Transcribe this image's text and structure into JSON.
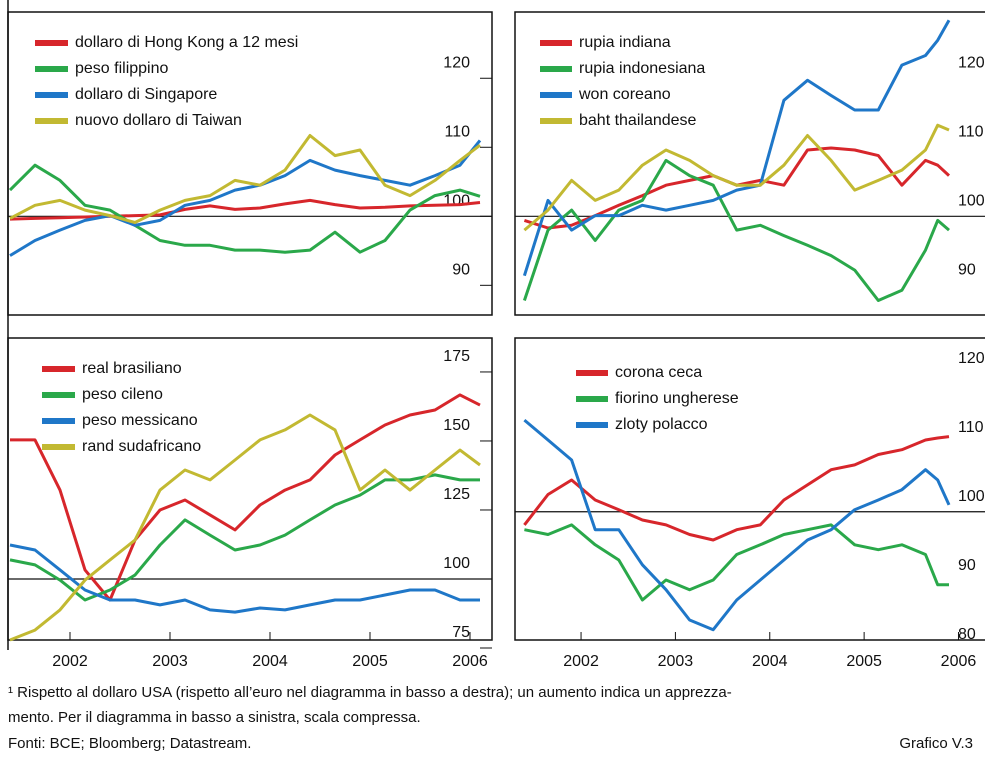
{
  "chart_data": [
    {
      "type": "line",
      "ylim": [
        85.7,
        129.6
      ],
      "yticks": [
        90,
        100,
        110,
        120
      ],
      "xlim": [
        2001.88,
        2006.72
      ],
      "reference_line": 100,
      "x": [
        2001.9,
        2002.15,
        2002.4,
        2002.65,
        2002.9,
        2003.15,
        2003.4,
        2003.65,
        2003.9,
        2004.15,
        2004.4,
        2004.65,
        2004.9,
        2005.15,
        2005.4,
        2005.65,
        2005.9,
        2006.15,
        2006.4,
        2006.6
      ],
      "series": [
        {
          "name": "dollaro di Hong Kong a 12 mesi",
          "color": "#d7262b",
          "values": [
            99.6,
            99.7,
            99.8,
            99.9,
            100,
            100.1,
            100.2,
            101,
            101.5,
            101,
            101.2,
            101.8,
            102.3,
            101.7,
            101.2,
            101.3,
            101.5,
            101.6,
            101.7,
            102
          ]
        },
        {
          "name": "peso filippino",
          "color": "#2aa84a",
          "values": [
            103.8,
            107.4,
            105.2,
            101.6,
            100.9,
            98.7,
            96.5,
            95.8,
            95.8,
            95.1,
            95.1,
            94.8,
            95.1,
            97.7,
            94.8,
            96.5,
            100.9,
            103,
            103.8,
            102.9
          ]
        },
        {
          "name": "dollaro di Singapore",
          "color": "#1f77c8",
          "values": [
            94.3,
            96.5,
            98,
            99.4,
            100.1,
            98.7,
            99.4,
            101.6,
            102.3,
            103.8,
            104.5,
            105.9,
            108.1,
            106.7,
            105.9,
            105.2,
            104.5,
            105.9,
            107.4,
            111
          ]
        },
        {
          "name": "nuovo dollaro di Taiwan",
          "color": "#c2b932",
          "values": [
            99.7,
            101.6,
            102.3,
            100.9,
            100.1,
            99.1,
            100.9,
            102.3,
            103,
            105.2,
            104.5,
            106.7,
            111.7,
            108.8,
            109.6,
            104.5,
            103,
            105.2,
            108.1,
            110.3
          ]
        }
      ]
    },
    {
      "type": "line",
      "ylim": [
        85.7,
        129.6
      ],
      "yticks": [
        90,
        100,
        110,
        120
      ],
      "xlim": [
        2001.8,
        2006.94
      ],
      "reference_line": 100,
      "x": [
        2001.9,
        2002.15,
        2002.4,
        2002.65,
        2002.9,
        2003.15,
        2003.4,
        2003.65,
        2003.9,
        2004.15,
        2004.4,
        2004.65,
        2004.9,
        2005.15,
        2005.4,
        2005.65,
        2005.9,
        2006.15,
        2006.28,
        2006.4
      ],
      "series": [
        {
          "name": "rupia indiana",
          "color": "#d7262b",
          "values": [
            99.4,
            98.3,
            98.7,
            100.1,
            101.6,
            103,
            104.5,
            105.2,
            105.9,
            104.5,
            105.2,
            104.5,
            109.6,
            109.9,
            109.6,
            108.8,
            104.5,
            108.1,
            107.4,
            105.9
          ]
        },
        {
          "name": "rupia indonesiana",
          "color": "#2aa84a",
          "values": [
            87.8,
            98,
            100.9,
            96.5,
            100.9,
            102.3,
            108.1,
            105.9,
            104.5,
            98,
            98.7,
            97.2,
            95.8,
            94.3,
            92.2,
            87.8,
            89.3,
            95.1,
            99.4,
            98
          ]
        },
        {
          "name": "won coreano",
          "color": "#1f77c8",
          "values": [
            91.4,
            102.3,
            98,
            100.1,
            100.1,
            101.6,
            100.9,
            101.6,
            102.3,
            103.8,
            104.5,
            116.8,
            119.7,
            117.5,
            115.4,
            115.4,
            121.9,
            123.3,
            125.5,
            128.4
          ]
        },
        {
          "name": "baht thailandese",
          "color": "#c2b932",
          "values": [
            98,
            100.9,
            105.2,
            102.3,
            103.8,
            107.4,
            109.6,
            108.1,
            105.9,
            104.5,
            104.5,
            107.4,
            111.7,
            108.1,
            103.8,
            105.2,
            106.7,
            109.6,
            113.2,
            112.5
          ]
        }
      ]
    },
    {
      "type": "line",
      "ylim": [
        77.9,
        187.3
      ],
      "yticks": [
        75,
        100,
        125,
        150,
        175
      ],
      "xlim": [
        2001.88,
        2006.72
      ],
      "reference_line": 100,
      "xticks": [
        {
          "value": 2002.5,
          "label": "2002"
        },
        {
          "value": 2003.5,
          "label": "2003"
        },
        {
          "value": 2004.5,
          "label": "2004"
        },
        {
          "value": 2005.5,
          "label": "2005"
        },
        {
          "value": 2006.5,
          "label": "2006"
        }
      ],
      "x": [
        2001.9,
        2002.15,
        2002.4,
        2002.65,
        2002.9,
        2003.15,
        2003.4,
        2003.65,
        2003.9,
        2004.15,
        2004.4,
        2004.65,
        2004.9,
        2005.15,
        2005.4,
        2005.65,
        2005.9,
        2006.15,
        2006.4,
        2006.6
      ],
      "series": [
        {
          "name": "real brasiliano",
          "color": "#d7262b",
          "values": [
            150.4,
            150.4,
            132.2,
            103.3,
            92.4,
            114.1,
            125,
            128.6,
            123.2,
            117.8,
            126.8,
            132.2,
            135.9,
            144.9,
            150.4,
            155.8,
            159.4,
            161.2,
            166.7,
            163
          ]
        },
        {
          "name": "peso cileno",
          "color": "#2aa84a",
          "values": [
            106.9,
            105.1,
            99.6,
            92.4,
            96,
            101.4,
            112.3,
            121.4,
            115.9,
            110.5,
            112.3,
            115.9,
            121.4,
            126.8,
            130.4,
            135.9,
            135.9,
            137.7,
            135.9,
            135.9
          ]
        },
        {
          "name": "peso messicano",
          "color": "#1f77c8",
          "values": [
            112.3,
            110.5,
            103.3,
            96,
            92.4,
            92.4,
            90.6,
            92.4,
            88.8,
            88,
            89.5,
            88.8,
            90.6,
            92.4,
            92.4,
            94.2,
            96,
            96,
            92.4,
            92.4
          ]
        },
        {
          "name": "rand sudafricano",
          "color": "#c2b932",
          "values": [
            77.9,
            81.5,
            88.8,
            99.6,
            106.9,
            114.1,
            132.2,
            139.5,
            135.9,
            143.1,
            150.4,
            154,
            159.4,
            154,
            132.2,
            139.5,
            132.2,
            139.5,
            146.7,
            141.3
          ]
        }
      ]
    },
    {
      "type": "line",
      "ylim": [
        81.4,
        125.2
      ],
      "yticks": [
        80,
        90,
        100,
        110,
        120
      ],
      "xlim": [
        2001.8,
        2006.94
      ],
      "reference_line": 100,
      "xticks": [
        {
          "value": 2002.5,
          "label": "2002"
        },
        {
          "value": 2003.5,
          "label": "2003"
        },
        {
          "value": 2004.5,
          "label": "2004"
        },
        {
          "value": 2005.5,
          "label": "2005"
        },
        {
          "value": 2006.5,
          "label": "2006"
        }
      ],
      "x": [
        2001.9,
        2002.15,
        2002.4,
        2002.65,
        2002.9,
        2003.15,
        2003.4,
        2003.65,
        2003.9,
        2004.15,
        2004.4,
        2004.65,
        2004.9,
        2005.15,
        2005.4,
        2005.65,
        2005.9,
        2006.15,
        2006.28,
        2006.4
      ],
      "series": [
        {
          "name": "corona ceca",
          "color": "#d7262b",
          "values": [
            98.1,
            102.5,
            104.6,
            101.7,
            100.3,
            98.8,
            98.1,
            96.7,
            95.9,
            97.4,
            98.1,
            101.7,
            103.9,
            106.1,
            106.8,
            108.3,
            109,
            110.4,
            110.7,
            110.9
          ]
        },
        {
          "name": "fiorino ungherese",
          "color": "#2aa84a",
          "values": [
            97.4,
            96.7,
            98.1,
            95.2,
            93,
            87.2,
            90.1,
            88.7,
            90.1,
            93.8,
            95.2,
            96.7,
            97.4,
            98.1,
            95.2,
            94.5,
            95.2,
            93.8,
            89.4,
            89.4
          ]
        },
        {
          "name": "zloty polacco",
          "color": "#1f77c8",
          "values": [
            113.3,
            110.4,
            107.5,
            97.4,
            97.4,
            92.3,
            88.7,
            84.3,
            82.9,
            87.2,
            90.1,
            93,
            95.9,
            97.4,
            100.3,
            101.7,
            103.2,
            106.1,
            104.6,
            101
          ]
        }
      ]
    }
  ],
  "notes": [
    "¹ Rispetto al dollaro USA (rispetto all’euro nel diagramma in basso a destra); un aumento indica un apprezza-",
    "mento. Per il diagramma in basso a sinistra, scala compressa."
  ],
  "source": "Fonti: BCE; Bloomberg; Datastream.",
  "figure_label": "Grafico V.3"
}
